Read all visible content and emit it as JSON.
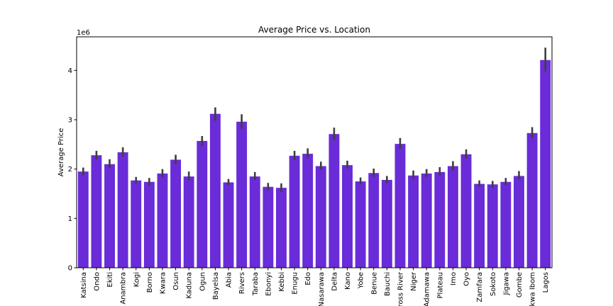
{
  "chart_data": {
    "type": "bar",
    "title": "Average Price vs. Location",
    "xlabel": "",
    "ylabel": "Average Price",
    "y_offset_label": "1e6",
    "ylim": [
      0,
      4.68
    ],
    "yticks": [
      0,
      1,
      2,
      3,
      4
    ],
    "ytick_labels": [
      "0",
      "1",
      "2",
      "3",
      "4"
    ],
    "grid": false,
    "bar_color": "#6a2bd8",
    "errorbar_color": "#3f3f3f",
    "categories": [
      "Katsina",
      "Ondo",
      "Ekiti",
      "Anambra",
      "Kogi",
      "Borno",
      "Kwara",
      "Osun",
      "Kaduna",
      "Ogun",
      "Bayelsa",
      "Abia",
      "Rivers",
      "Taraba",
      "Ebonyi",
      "Kebbi",
      "Enugu",
      "Edo",
      "Nasarawa",
      "Delta",
      "Kano",
      "Yobe",
      "Benue",
      "Bauchi",
      "Cross River",
      "Niger",
      "Adamawa",
      "Plateau",
      "Imo",
      "Oyo",
      "Zamfara",
      "Sokoto",
      "Jigawa",
      "Gombe",
      "Akwa Ibom",
      "Lagos"
    ],
    "values": [
      1.95,
      2.28,
      2.1,
      2.34,
      1.77,
      1.74,
      1.91,
      2.19,
      1.85,
      2.57,
      3.12,
      1.73,
      2.96,
      1.85,
      1.64,
      1.62,
      2.27,
      2.31,
      2.06,
      2.71,
      2.08,
      1.75,
      1.92,
      1.78,
      2.51,
      1.87,
      1.91,
      1.94,
      2.06,
      2.3,
      1.7,
      1.69,
      1.74,
      1.86,
      2.73,
      4.21
    ],
    "err_low": [
      1.87,
      2.19,
      2.02,
      2.25,
      1.71,
      1.67,
      1.83,
      2.1,
      1.77,
      2.47,
      2.98,
      1.67,
      2.82,
      1.78,
      1.57,
      1.54,
      2.18,
      2.22,
      1.99,
      2.58,
      2.01,
      1.69,
      1.84,
      1.71,
      2.41,
      1.79,
      1.84,
      1.87,
      1.97,
      2.21,
      1.64,
      1.62,
      1.67,
      1.79,
      2.63,
      3.98
    ],
    "err_high": [
      2.03,
      2.37,
      2.2,
      2.44,
      1.84,
      1.82,
      2.0,
      2.29,
      1.95,
      2.67,
      3.25,
      1.8,
      3.11,
      1.94,
      1.72,
      1.71,
      2.37,
      2.42,
      2.15,
      2.84,
      2.17,
      1.83,
      2.01,
      1.86,
      2.63,
      1.97,
      2.0,
      2.04,
      2.16,
      2.4,
      1.77,
      1.76,
      1.82,
      1.96,
      2.85,
      4.46
    ]
  }
}
